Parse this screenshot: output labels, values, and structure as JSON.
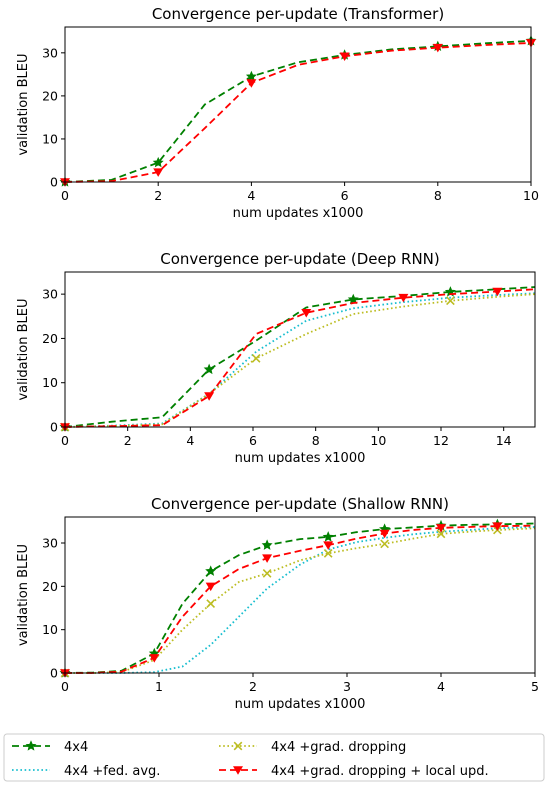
{
  "chart_data": [
    {
      "type": "line",
      "title": "Convergence per-update (Transformer)",
      "xlabel": "num updates x1000",
      "ylabel": "validation BLEU",
      "xlim": [
        0,
        10
      ],
      "ylim": [
        0,
        36
      ],
      "xticks": [
        0,
        2,
        4,
        6,
        8,
        10
      ],
      "yticks": [
        0,
        10,
        20,
        30
      ],
      "grid": false,
      "series": [
        {
          "name": "4x4",
          "color": "#008000",
          "marker": "star",
          "dash": "dashed",
          "x": [
            0,
            1,
            2,
            3,
            4,
            5,
            6,
            7,
            8,
            9,
            10
          ],
          "y": [
            0,
            0.5,
            4.5,
            18,
            24.5,
            27.8,
            29.5,
            30.8,
            31.5,
            32.2,
            32.8
          ],
          "marked_x": [
            0,
            2,
            4,
            6,
            8,
            10
          ]
        },
        {
          "name": "4x4 +grad. dropping + local upd.",
          "color": "#ff0000",
          "marker": "triangle-down",
          "dash": "dashed",
          "x": [
            0,
            1,
            2,
            3,
            4,
            5,
            6,
            7,
            8,
            9,
            10
          ],
          "y": [
            0,
            0.2,
            2.3,
            12.5,
            23,
            27.2,
            29.2,
            30.5,
            31.2,
            31.8,
            32.3
          ],
          "marked_x": [
            0,
            2,
            4,
            6,
            8,
            10
          ]
        }
      ]
    },
    {
      "type": "line",
      "title": "Convergence per-update (Deep RNN)",
      "xlabel": "num updates x1000",
      "ylabel": "validation BLEU",
      "xlim": [
        0,
        15
      ],
      "ylim": [
        0,
        35
      ],
      "xticks": [
        0,
        2,
        4,
        6,
        8,
        10,
        12,
        14
      ],
      "yticks": [
        0,
        10,
        20,
        30
      ],
      "grid": false,
      "series": [
        {
          "name": "4x4",
          "color": "#008000",
          "marker": "star",
          "dash": "dashed",
          "x": [
            0,
            1.5,
            3.1,
            4.6,
            6.1,
            7.7,
            9.2,
            10.8,
            12.3,
            13.8,
            15
          ],
          "y": [
            0,
            1.2,
            2.2,
            13,
            19.5,
            27,
            28.8,
            29.6,
            30.5,
            31.1,
            31.6
          ],
          "marked_x": [
            0,
            4.6,
            9.2,
            12.3
          ]
        },
        {
          "name": "4x4 +fed. avg.",
          "color": "#17becf",
          "marker": "none",
          "dash": "dotted",
          "x": [
            0,
            1.5,
            3.1,
            4.6,
            6.1,
            7.7,
            9.2,
            10.8,
            12.3,
            13.8,
            15
          ],
          "y": [
            0,
            0.3,
            0.8,
            7.5,
            17,
            24,
            26.8,
            28.2,
            29.2,
            29.8,
            30.2
          ],
          "marked_x": []
        },
        {
          "name": "4x4 +grad. dropping",
          "color": "#bcbd22",
          "marker": "x",
          "dash": "dotted",
          "x": [
            0,
            1.5,
            3.1,
            4.6,
            6.1,
            7.7,
            9.2,
            10.8,
            12.3,
            13.8,
            15
          ],
          "y": [
            0,
            0.2,
            0.6,
            7.5,
            15.5,
            21,
            25.5,
            27.2,
            28.5,
            29.4,
            30
          ],
          "marked_x": [
            0,
            6.1,
            12.3
          ]
        },
        {
          "name": "4x4 +grad. dropping + local upd.",
          "color": "#ff0000",
          "marker": "triangle-down",
          "dash": "dashed",
          "x": [
            0,
            1.5,
            3.1,
            4.6,
            6.1,
            7.7,
            9.2,
            10.8,
            12.3,
            13.8,
            15
          ],
          "y": [
            0,
            0.2,
            0.4,
            7,
            21,
            25.8,
            28,
            29.2,
            30,
            30.6,
            31.1
          ],
          "marked_x": [
            0,
            4.6,
            7.7,
            10.8,
            13.8
          ]
        }
      ]
    },
    {
      "type": "line",
      "title": "Convergence per-update (Shallow RNN)",
      "xlabel": "num updates x1000",
      "ylabel": "validation BLEU",
      "xlim": [
        0,
        5
      ],
      "ylim": [
        0,
        36
      ],
      "xticks": [
        0,
        1,
        2,
        3,
        4,
        5
      ],
      "yticks": [
        0,
        10,
        20,
        30
      ],
      "grid": false,
      "series": [
        {
          "name": "4x4",
          "color": "#008000",
          "marker": "star",
          "dash": "dashed",
          "x": [
            0,
            0.3,
            0.6,
            0.95,
            1.25,
            1.55,
            1.85,
            2.15,
            2.5,
            2.8,
            3.1,
            3.4,
            3.7,
            4.0,
            4.3,
            4.6,
            5.0
          ],
          "y": [
            0,
            0.1,
            0.5,
            4.5,
            16,
            23.5,
            27.2,
            29.5,
            30.9,
            31.4,
            32.5,
            33.2,
            33.6,
            34,
            34.2,
            34.3,
            34.5
          ],
          "marked_x": [
            0,
            0.95,
            1.55,
            2.15,
            2.8,
            3.4,
            4.0,
            4.6
          ]
        },
        {
          "name": "4x4 +fed. avg.",
          "color": "#17becf",
          "marker": "none",
          "dash": "dotted",
          "x": [
            0,
            0.3,
            0.6,
            0.95,
            1.25,
            1.55,
            1.85,
            2.15,
            2.5,
            2.8,
            3.1,
            3.4,
            3.7,
            4.0,
            4.3,
            4.6,
            5.0
          ],
          "y": [
            0,
            0,
            0,
            0.2,
            1.5,
            6.5,
            13,
            19.5,
            25,
            28.5,
            30.2,
            31.2,
            32,
            32.6,
            33,
            33.4,
            33.7
          ],
          "marked_x": []
        },
        {
          "name": "4x4 +grad. dropping",
          "color": "#bcbd22",
          "marker": "x",
          "dash": "dotted",
          "x": [
            0,
            0.3,
            0.6,
            0.95,
            1.25,
            1.55,
            1.85,
            2.15,
            2.5,
            2.8,
            3.1,
            3.4,
            3.7,
            4.0,
            4.3,
            4.6,
            5.0
          ],
          "y": [
            0,
            0,
            0.2,
            3,
            10,
            16,
            21,
            23,
            26,
            27.6,
            28.8,
            29.8,
            31,
            32.1,
            32.6,
            33,
            33.4
          ],
          "marked_x": [
            0,
            1.55,
            2.15,
            2.8,
            3.4,
            4.0,
            4.6
          ]
        },
        {
          "name": "4x4 +grad. dropping + local upd.",
          "color": "#ff0000",
          "marker": "triangle-down",
          "dash": "dashed",
          "x": [
            0,
            0.3,
            0.6,
            0.95,
            1.25,
            1.55,
            1.85,
            2.15,
            2.5,
            2.8,
            3.1,
            3.4,
            3.7,
            4.0,
            4.3,
            4.6,
            5.0
          ],
          "y": [
            0,
            0,
            0.3,
            3.5,
            13,
            20,
            24,
            26.5,
            28.2,
            29.5,
            31,
            32.2,
            33,
            33.5,
            33.7,
            33.9,
            34
          ],
          "marked_x": [
            0,
            0.95,
            1.55,
            2.15,
            2.8,
            3.4,
            4.0,
            4.6
          ]
        }
      ]
    }
  ],
  "legend": {
    "placement": "bottom",
    "entries": [
      {
        "label": "4x4",
        "color": "#008000",
        "marker": "star",
        "dash": "dashed"
      },
      {
        "label": "4x4 +grad. dropping",
        "color": "#bcbd22",
        "marker": "x",
        "dash": "dotted"
      },
      {
        "label": "4x4 +fed. avg.",
        "color": "#17becf",
        "marker": "none",
        "dash": "dotted"
      },
      {
        "label": "4x4 +grad. dropping + local upd.",
        "color": "#ff0000",
        "marker": "triangle-down",
        "dash": "dashed"
      }
    ]
  }
}
